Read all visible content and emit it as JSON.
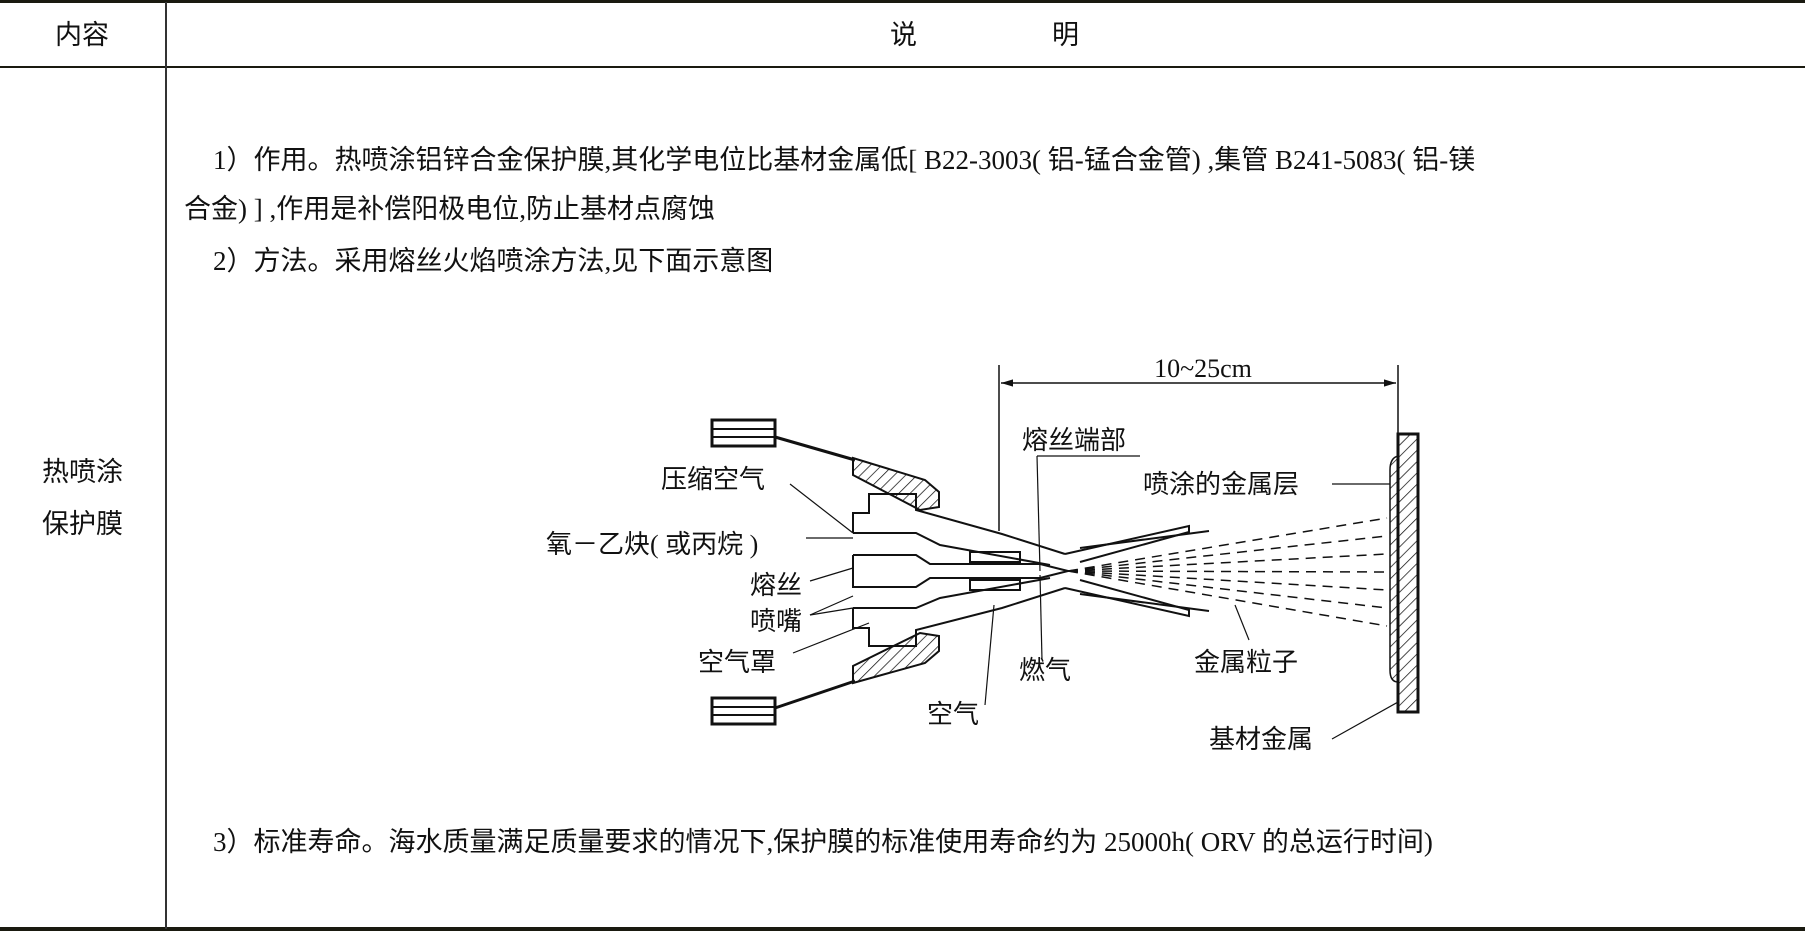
{
  "table": {
    "header": {
      "col1": "内容",
      "col2_a": "说",
      "col2_b": "明"
    },
    "row": {
      "content_line1": "热喷涂",
      "content_line2": "保护膜",
      "items": {
        "item1_line1": "1）作用。热喷涂铝锌合金保护膜,其化学电位比基材金属低[ B22-3003( 铝-锰合金管) ,集管 B241-5083( 铝-镁",
        "item1_line2": "合金) ] ,作用是补偿阳极电位,防止基材点腐蚀",
        "item2": "2）方法。采用熔丝火焰喷涂方法,见下面示意图",
        "item3": "3）标准寿命。海水质量满足质量要求的情况下,保护膜的标准使用寿命约为 25000h( ORV 的总运行时间)"
      }
    }
  },
  "diagram": {
    "distance": "10~25cm",
    "labels": {
      "wire_tip": "熔丝端部",
      "compressed_air": "压缩空气",
      "oxy_acetylene": "氧－乙炔( 或丙烷 )",
      "wire": "熔丝",
      "nozzle": "喷嘴",
      "air_cap": "空气罩",
      "air": "空气",
      "fuel_gas": "燃气",
      "sprayed_layer": "喷涂的金属层",
      "metal_particles": "金属粒子",
      "substrate": "基材金属"
    }
  }
}
